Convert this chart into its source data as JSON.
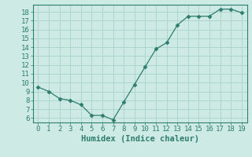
{
  "x": [
    0,
    1,
    2,
    3,
    4,
    5,
    6,
    7,
    8,
    9,
    10,
    11,
    12,
    13,
    14,
    15,
    16,
    17,
    18,
    19
  ],
  "y": [
    9.5,
    9.0,
    8.2,
    8.0,
    7.5,
    6.3,
    6.3,
    5.8,
    7.8,
    9.8,
    11.8,
    13.8,
    14.5,
    16.5,
    17.5,
    17.5,
    17.5,
    18.3,
    18.3,
    17.9
  ],
  "line_color": "#2e7d6e",
  "marker": "D",
  "marker_size": 2.5,
  "bg_color": "#ceeae4",
  "grid_color": "#aed4ce",
  "xlabel": "Humidex (Indice chaleur)",
  "xlim": [
    -0.5,
    19.5
  ],
  "ylim": [
    5.5,
    18.8
  ],
  "yticks": [
    6,
    7,
    8,
    9,
    10,
    11,
    12,
    13,
    14,
    15,
    16,
    17,
    18
  ],
  "xticks": [
    0,
    1,
    2,
    3,
    4,
    5,
    6,
    7,
    8,
    9,
    10,
    11,
    12,
    13,
    14,
    15,
    16,
    17,
    18,
    19
  ],
  "tick_color": "#2e7d6e",
  "label_color": "#2e7d6e",
  "font_size": 6.5,
  "label_font_size": 7.5
}
